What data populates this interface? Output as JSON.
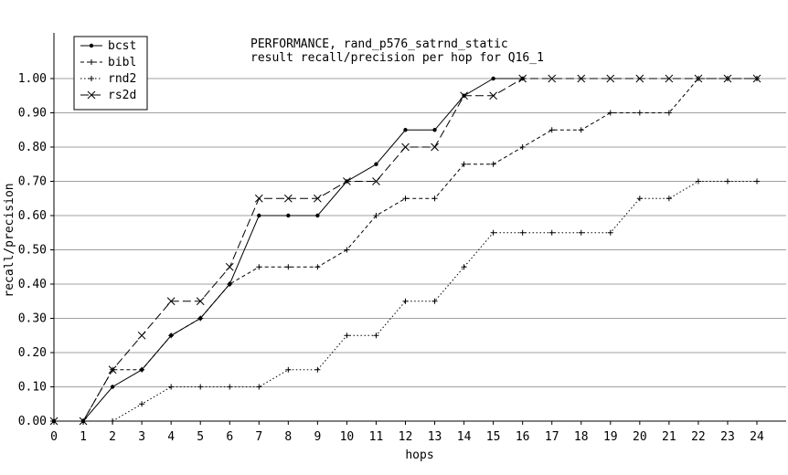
{
  "chart_data": {
    "type": "line",
    "title": "PERFORMANCE, rand_p576_satrnd_static",
    "subtitle": "result recall/precision per hop for Q16_1",
    "xlabel": "hops",
    "ylabel": "recall/precision",
    "xlim": [
      0,
      24
    ],
    "ylim": [
      0,
      1.0
    ],
    "x_ticks": [
      "0",
      "1",
      "2",
      "3",
      "4",
      "5",
      "6",
      "7",
      "8",
      "9",
      "10",
      "11",
      "12",
      "13",
      "14",
      "15",
      "16",
      "17",
      "18",
      "19",
      "20",
      "21",
      "22",
      "23",
      "24"
    ],
    "y_ticks": [
      "0.00",
      "0.10",
      "0.20",
      "0.30",
      "0.40",
      "0.50",
      "0.60",
      "0.70",
      "0.80",
      "0.90",
      "1.00"
    ],
    "grid": "horizontal",
    "legend_position": "top-left",
    "series": [
      {
        "name": "bcst",
        "marker": "dot",
        "dash": "solid",
        "x": [
          0,
          1,
          2,
          3,
          4,
          5,
          6,
          7,
          8,
          9,
          10,
          11,
          12,
          13,
          14,
          15,
          16
        ],
        "y": [
          0,
          0,
          0.1,
          0.15,
          0.25,
          0.3,
          0.4,
          0.6,
          0.6,
          0.6,
          0.7,
          0.75,
          0.85,
          0.85,
          0.95,
          1.0,
          1.0
        ]
      },
      {
        "name": "bibl",
        "marker": "plus",
        "dash": "dashed",
        "x": [
          0,
          1,
          2,
          3,
          4,
          5,
          6,
          7,
          8,
          9,
          10,
          11,
          12,
          13,
          14,
          15,
          16,
          17,
          18,
          19,
          20,
          21,
          22,
          23,
          24
        ],
        "y": [
          0,
          0,
          0.15,
          0.15,
          0.25,
          0.3,
          0.4,
          0.45,
          0.45,
          0.45,
          0.5,
          0.6,
          0.65,
          0.65,
          0.75,
          0.75,
          0.8,
          0.85,
          0.85,
          0.9,
          0.9,
          0.9,
          1.0,
          1.0,
          1.0
        ]
      },
      {
        "name": "rnd2",
        "marker": "plus",
        "dash": "dotted",
        "x": [
          0,
          1,
          2,
          3,
          4,
          5,
          6,
          7,
          8,
          9,
          10,
          11,
          12,
          13,
          14,
          15,
          16,
          17,
          18,
          19,
          20,
          21,
          22,
          23,
          24
        ],
        "y": [
          0,
          0,
          0,
          0.05,
          0.1,
          0.1,
          0.1,
          0.1,
          0.15,
          0.15,
          0.25,
          0.25,
          0.35,
          0.35,
          0.45,
          0.55,
          0.55,
          0.55,
          0.55,
          0.55,
          0.65,
          0.65,
          0.7,
          0.7,
          0.7
        ]
      },
      {
        "name": "rs2d",
        "marker": "cross",
        "dash": "longdash",
        "x": [
          0,
          1,
          2,
          3,
          4,
          5,
          6,
          7,
          8,
          9,
          10,
          11,
          12,
          13,
          14,
          15,
          16,
          17,
          18,
          19,
          20,
          21,
          22,
          23,
          24
        ],
        "y": [
          0,
          0,
          0.15,
          0.25,
          0.35,
          0.35,
          0.45,
          0.65,
          0.65,
          0.65,
          0.7,
          0.7,
          0.8,
          0.8,
          0.95,
          0.95,
          1.0,
          1.0,
          1.0,
          1.0,
          1.0,
          1.0,
          1.0,
          1.0,
          1.0
        ]
      }
    ]
  }
}
